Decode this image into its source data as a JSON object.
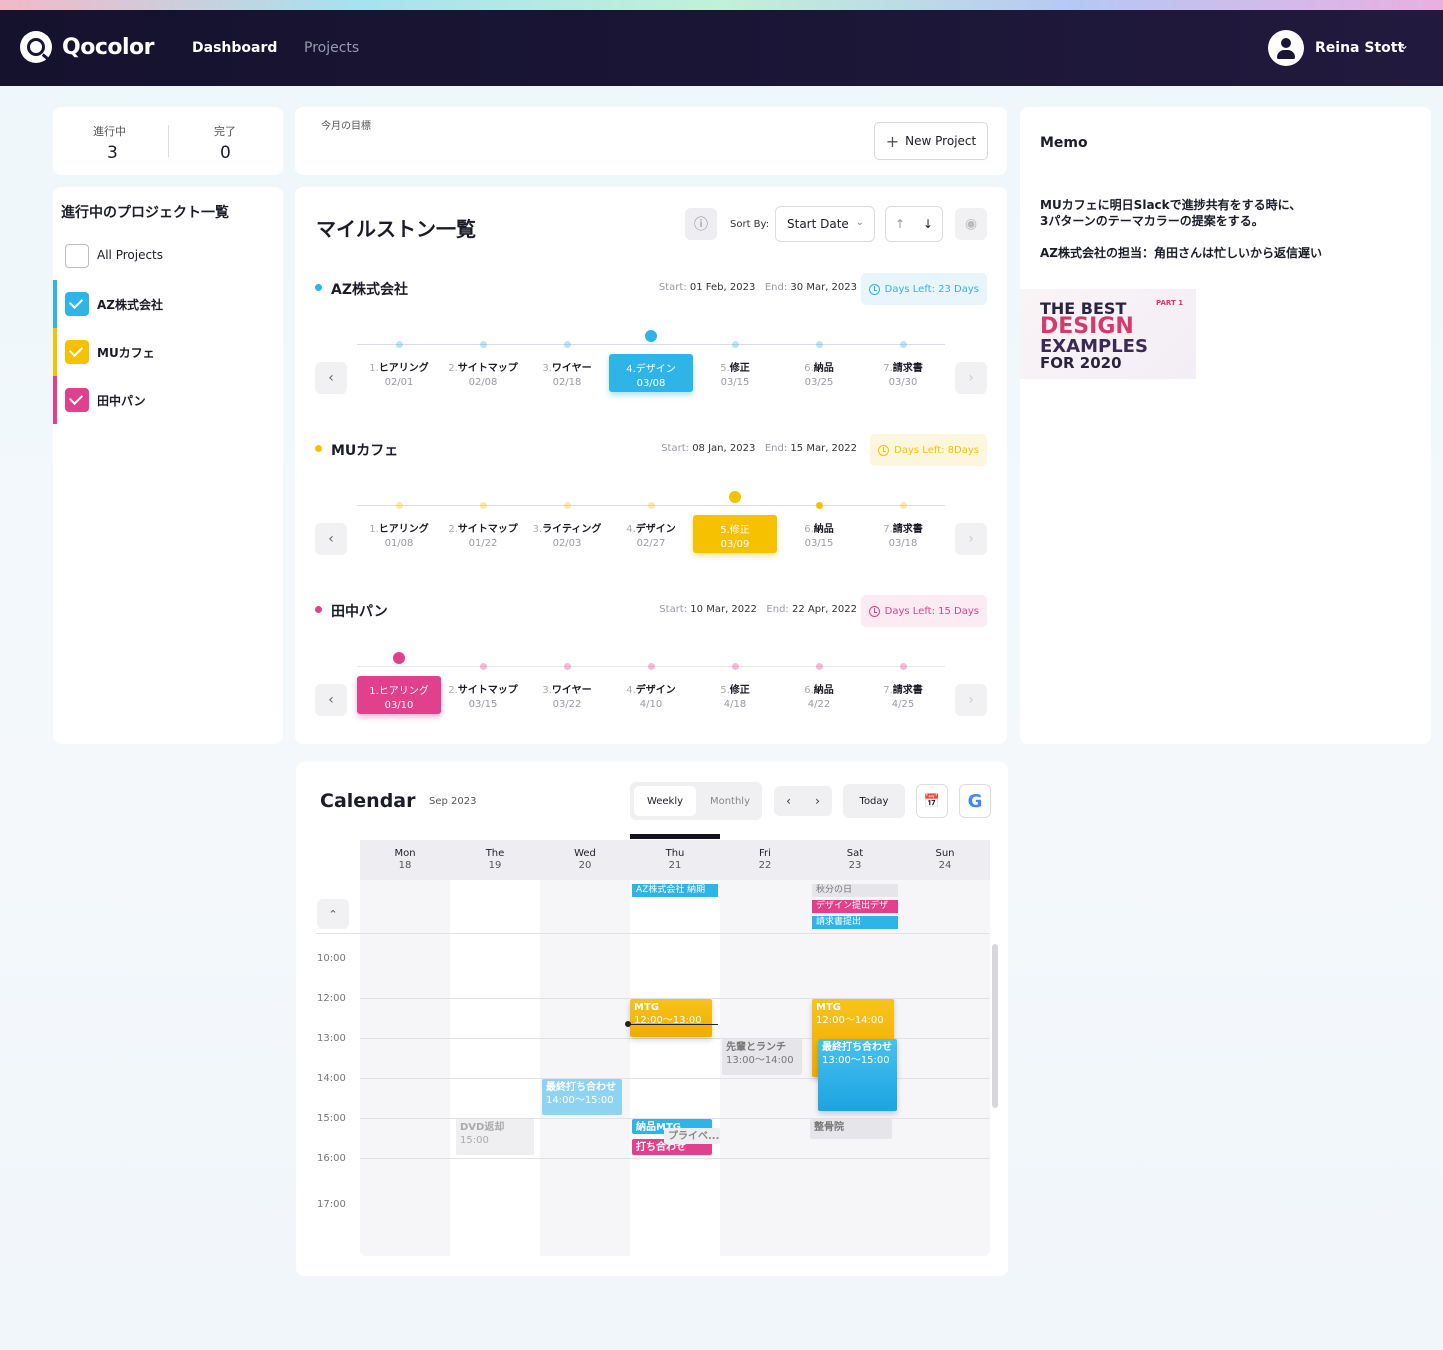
{
  "app": {
    "name": "Qocolor"
  },
  "nav": {
    "dashboard": "Dashboard",
    "projects": "Projects"
  },
  "user": {
    "name": "Reina Stott"
  },
  "stats": {
    "in_progress_label": "進行中",
    "in_progress_value": "3",
    "done_label": "完了",
    "done_value": "0"
  },
  "goal": {
    "label": "今月の目標",
    "new_project": "New Project"
  },
  "project_list": {
    "title": "進行中のプロジェクト一覧",
    "all": "All Projects",
    "items": [
      {
        "label": "AZ株式会社",
        "color": "#2eb4e6"
      },
      {
        "label": "MUカフェ",
        "color": "#f6c100"
      },
      {
        "label": "田中パン",
        "color": "#e0408c"
      }
    ]
  },
  "memo": {
    "title": "Memo",
    "line1": "MUカフェに明日Slackで進捗共有をする時に、",
    "line2": "3パターンのテーマカラーの提案をする。",
    "line3": "AZ株式会社の担当：角田さんは忙しいから返信遅い",
    "image": {
      "l1": "THE BEST",
      "l2": "DESIGN",
      "l3": "EXAMPLES",
      "l4": "FOR 2020",
      "tag": "PART 1"
    }
  },
  "milestones": {
    "title": "マイルストン一覧",
    "sort_by": "Sort By:",
    "sort_value": "Start Date",
    "start_key": "Start:",
    "end_key": "End:",
    "projects": [
      {
        "name": "AZ株式会社",
        "color": "#2eb4e6",
        "badge_bg": "#e8f6fc",
        "start": "01 Feb, 2023",
        "end": "30 Mar, 2023",
        "days": "Days Left: 23 Days",
        "active": 3,
        "steps": [
          {
            "i": "1.",
            "t": "ヒアリング",
            "d": "02/01"
          },
          {
            "i": "2.",
            "t": "サイトマップ",
            "d": "02/08"
          },
          {
            "i": "3.",
            "t": "ワイヤー",
            "d": "02/18"
          },
          {
            "i": "4.",
            "t": "デザイン",
            "d": "03/08"
          },
          {
            "i": "5.",
            "t": "修正",
            "d": "03/15"
          },
          {
            "i": "6.",
            "t": "納品",
            "d": "03/25"
          },
          {
            "i": "7.",
            "t": "請求書",
            "d": "03/30"
          }
        ]
      },
      {
        "name": "MUカフェ",
        "color": "#f6c100",
        "badge_bg": "#fdf6df",
        "start": "08 Jan, 2023",
        "end": "15 Mar, 2022",
        "days": "Days Left: 8Days",
        "active": 4,
        "steps": [
          {
            "i": "1.",
            "t": "ヒアリング",
            "d": "01/08"
          },
          {
            "i": "2.",
            "t": "サイトマップ",
            "d": "01/22"
          },
          {
            "i": "3.",
            "t": "ライティング",
            "d": "02/03"
          },
          {
            "i": "4.",
            "t": "デザイン",
            "d": "02/27"
          },
          {
            "i": "5.",
            "t": "修正",
            "d": "03/09"
          },
          {
            "i": "6.",
            "t": "納品",
            "d": "03/15"
          },
          {
            "i": "7.",
            "t": "請求書",
            "d": "03/18"
          }
        ]
      },
      {
        "name": "田中パン",
        "color": "#e0408c",
        "badge_bg": "#fcebf3",
        "start": "10 Mar, 2022",
        "end": "22 Apr, 2022",
        "days": "Days Left: 15 Days",
        "active": 0,
        "steps": [
          {
            "i": "1.",
            "t": "ヒアリング",
            "d": "03/10"
          },
          {
            "i": "2.",
            "t": "サイトマップ",
            "d": "03/15"
          },
          {
            "i": "3.",
            "t": "ワイヤー",
            "d": "03/22"
          },
          {
            "i": "4.",
            "t": "デザイン",
            "d": "4/10"
          },
          {
            "i": "5.",
            "t": "修正",
            "d": "4/18"
          },
          {
            "i": "6.",
            "t": "納品",
            "d": "4/22"
          },
          {
            "i": "7.",
            "t": "請求書",
            "d": "4/25"
          }
        ]
      }
    ]
  },
  "calendar": {
    "title": "Calendar",
    "month": "Sep 2023",
    "weekly": "Weekly",
    "monthly": "Monthly",
    "today": "Today",
    "days": [
      {
        "n": "Mon",
        "d": "18"
      },
      {
        "n": "The",
        "d": "19"
      },
      {
        "n": "Wed",
        "d": "20"
      },
      {
        "n": "Thu",
        "d": "21"
      },
      {
        "n": "Fri",
        "d": "22"
      },
      {
        "n": "Sat",
        "d": "23"
      },
      {
        "n": "Sun",
        "d": "24"
      }
    ],
    "times": [
      "10:00",
      "12:00",
      "13:00",
      "14:00",
      "15:00",
      "16:00",
      "17:00"
    ],
    "allday": [
      {
        "day": 3,
        "row": 0,
        "t": "AZ株式会社 納期",
        "bg": "#2eb4e6",
        "fg": "#ffffff"
      },
      {
        "day": 5,
        "row": 0,
        "t": "秋分の日",
        "bg": "#e6e6ea",
        "fg": "#777777"
      },
      {
        "day": 5,
        "row": 1,
        "t": "デザイン提出デザ",
        "bg": "#e0408c",
        "fg": "#ffffff"
      },
      {
        "day": 5,
        "row": 2,
        "t": "請求書提出",
        "bg": "#2eb4e6",
        "fg": "#ffffff"
      }
    ],
    "events": {
      "mtg_thu": {
        "t": "MTG",
        "time": "12:00〜13:00"
      },
      "mtg_sat": {
        "t": "MTG",
        "time": "12:00〜14:00"
      },
      "lunch": {
        "t": "先輩とランチ",
        "time": "13:00〜14:00"
      },
      "final_sat": {
        "t": "最終打ち合わせ",
        "time": "13:00〜15:00"
      },
      "final_wed": {
        "t": "最終打ち合わせ",
        "time": "14:00〜15:00"
      },
      "dvd": {
        "t": "DVD返却",
        "time": "15:00"
      },
      "delivery": {
        "t": "納品MTG"
      },
      "meeting": {
        "t": "打ち合わせ"
      },
      "private": {
        "t": "プライベ..."
      },
      "clinic": {
        "t": "整骨院"
      }
    }
  }
}
